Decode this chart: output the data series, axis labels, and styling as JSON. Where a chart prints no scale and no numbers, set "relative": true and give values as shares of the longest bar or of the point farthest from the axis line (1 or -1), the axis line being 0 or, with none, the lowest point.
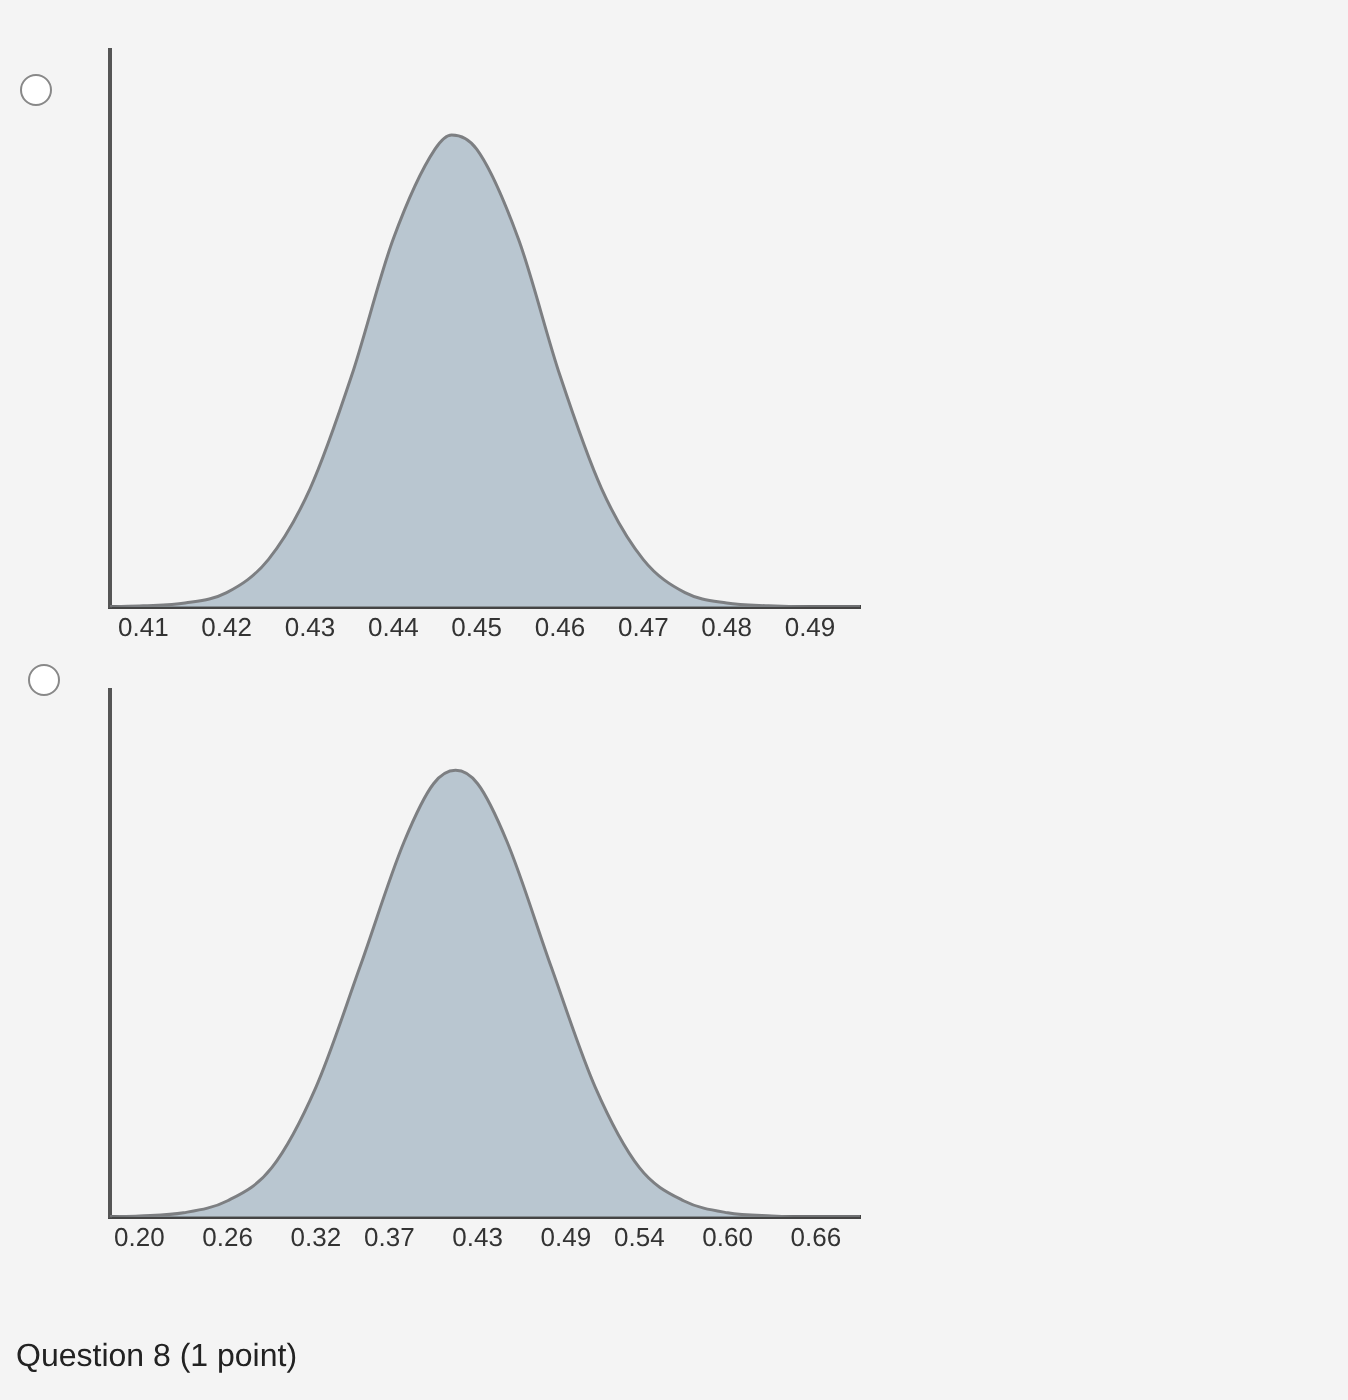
{
  "chart_data": [
    {
      "type": "area",
      "relative": true,
      "marker": "none",
      "grid": false,
      "tick_labels": "x",
      "color": "#b9c6d0",
      "x": [
        0.406,
        0.41,
        0.415,
        0.42,
        0.425,
        0.43,
        0.435,
        0.44,
        0.445,
        0.447,
        0.45,
        0.455,
        0.46,
        0.465,
        0.47,
        0.475,
        0.48,
        0.485,
        0.49,
        0.496
      ],
      "values": [
        0,
        0.002,
        0.008,
        0.03,
        0.1,
        0.25,
        0.49,
        0.78,
        0.97,
        1,
        0.97,
        0.78,
        0.49,
        0.25,
        0.1,
        0.03,
        0.008,
        0.002,
        0,
        0
      ],
      "xlim": [
        0.406,
        0.496
      ],
      "xticks": [
        0.41,
        0.42,
        0.43,
        0.44,
        0.45,
        0.46,
        0.47,
        0.48,
        0.49
      ]
    },
    {
      "type": "area",
      "relative": true,
      "marker": "none",
      "grid": false,
      "tick_labels": "x",
      "color": "#b9c6d0",
      "x": [
        0.18,
        0.2,
        0.23,
        0.26,
        0.29,
        0.32,
        0.35,
        0.38,
        0.4,
        0.415,
        0.43,
        0.45,
        0.48,
        0.51,
        0.54,
        0.57,
        0.6,
        0.63,
        0.66,
        0.69
      ],
      "values": [
        0,
        0.002,
        0.009,
        0.036,
        0.11,
        0.29,
        0.56,
        0.84,
        0.97,
        1,
        0.97,
        0.84,
        0.56,
        0.29,
        0.11,
        0.036,
        0.009,
        0.002,
        0,
        0
      ],
      "xlim": [
        0.18,
        0.69
      ],
      "xticks": [
        "0.20",
        0.26,
        0.32,
        0.37,
        0.43,
        0.49,
        0.54,
        "0.60",
        0.66
      ],
      "annotations": [
        "Question 8 (1 point)"
      ]
    }
  ]
}
